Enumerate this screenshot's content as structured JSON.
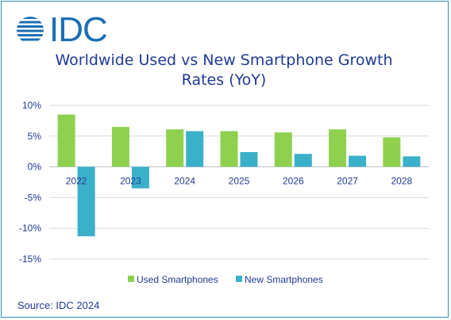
{
  "logo": {
    "text": "IDC",
    "color": "#1b6fb5"
  },
  "source": "Source: IDC 2024",
  "chart_data": {
    "type": "bar",
    "title_lines": [
      "Worldwide Used vs New Smartphone Growth",
      "Rates (YoY)"
    ],
    "categories": [
      "2022",
      "2023",
      "2024",
      "2025",
      "2026",
      "2027",
      "2028"
    ],
    "series": [
      {
        "name": "Used Smartphones",
        "color": "#8fd14f",
        "values": [
          8.5,
          6.5,
          6.1,
          5.8,
          5.6,
          6.1,
          4.8
        ]
      },
      {
        "name": "New Smartphones",
        "color": "#3bb0c9",
        "values": [
          -11.3,
          -3.5,
          5.8,
          2.4,
          2.1,
          1.8,
          1.7
        ]
      }
    ],
    "yticks": [
      10,
      5,
      0,
      -5,
      -10,
      -15
    ],
    "ytick_labels": [
      "10%",
      "5%",
      "0%",
      "-5%",
      "-10%",
      "-15%"
    ],
    "ylim": [
      -15,
      10
    ],
    "grid": true,
    "legend_position": "bottom"
  }
}
